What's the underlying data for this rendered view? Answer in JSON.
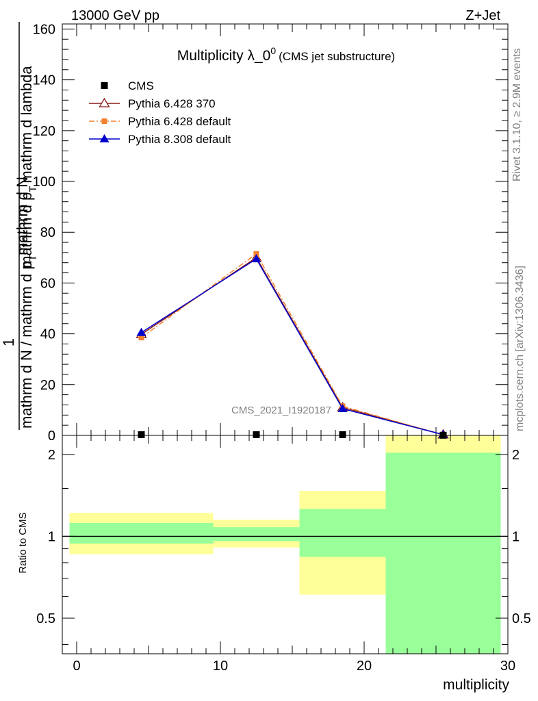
{
  "header": {
    "left": "13000 GeV pp",
    "right": "Z+Jet"
  },
  "side": {
    "rivet": "Rivet 3.1.10, ≥ 2.9M events",
    "mcplots": "mcplots.cern.ch [arXiv:1306.3436]"
  },
  "chart_data": [
    {
      "type": "line",
      "title_main": "Multiplicity λ_0",
      "title_sup": "0",
      "title_paren": "(CMS jet substructure)",
      "analysis_label": "CMS_2021_I1920187",
      "ylabel_parts": [
        "1",
        "mathrm d N / mathrm d p",
        "T",
        "mathrm d N",
        "mathrm d p",
        "T",
        "mathrm d lambda"
      ],
      "ylim": [
        0,
        162
      ],
      "xlim": [
        -1,
        30
      ],
      "yticks": [
        0,
        20,
        40,
        60,
        80,
        100,
        120,
        140,
        160
      ],
      "ytick_labels": [
        "0",
        "20",
        "40",
        "60",
        "80",
        "100",
        "120",
        "140",
        "160"
      ],
      "legend_position": "top-left",
      "series": [
        {
          "name": "CMS",
          "color": "#000000",
          "marker": "square",
          "x": [
            4.5,
            12.5,
            18.5,
            25.5
          ],
          "y": [
            0.3,
            0.3,
            0.3,
            0.05
          ]
        },
        {
          "name": "Pythia 6.428 370",
          "color": "#8b1a1a",
          "marker": "triangle-open",
          "line": "solid",
          "x": [
            4.5,
            12.5,
            18.5,
            25.5
          ],
          "y": [
            39.8,
            70.0,
            11.0,
            0.3
          ]
        },
        {
          "name": "Pythia 6.428 default",
          "color": "#f08030",
          "marker": "square-small",
          "line": "dashdot",
          "x": [
            4.5,
            12.5,
            18.5,
            25.5
          ],
          "y": [
            38.5,
            71.5,
            11.5,
            0.2
          ]
        },
        {
          "name": "Pythia 8.308 default",
          "color": "#0000cc",
          "marker": "triangle",
          "line": "solid",
          "x": [
            4.5,
            12.5,
            18.5,
            25.5
          ],
          "y": [
            40.5,
            69.5,
            10.5,
            0.3
          ]
        }
      ]
    },
    {
      "type": "area",
      "ylabel": "Ratio to CMS",
      "xlabel": "multiplicity",
      "xlim": [
        -1,
        30
      ],
      "ylim": [
        0.37,
        2.35
      ],
      "log_y": true,
      "xticks": [
        0,
        10,
        20,
        30
      ],
      "xtick_labels": [
        "0",
        "10",
        "20",
        "30"
      ],
      "yticks": [
        0.5,
        1,
        2
      ],
      "ytick_labels": [
        "0.5",
        "1",
        "2"
      ],
      "reference_line": 1,
      "bands": [
        {
          "x0": -0.5,
          "x1": 9.5,
          "green": [
            0.94,
            1.12
          ],
          "yellow": [
            0.86,
            1.22
          ]
        },
        {
          "x0": 9.5,
          "x1": 15.5,
          "green": [
            0.96,
            1.08
          ],
          "yellow": [
            0.91,
            1.15
          ]
        },
        {
          "x0": 15.5,
          "x1": 21.5,
          "green": [
            0.84,
            1.26
          ],
          "yellow": [
            0.61,
            1.47
          ]
        },
        {
          "x0": 21.5,
          "x1": 29.5,
          "green": [
            0.37,
            2.03
          ],
          "yellow": [
            0.37,
            2.35
          ]
        }
      ],
      "band_colors": {
        "green": "#99ff99",
        "yellow": "#ffff99"
      }
    }
  ]
}
